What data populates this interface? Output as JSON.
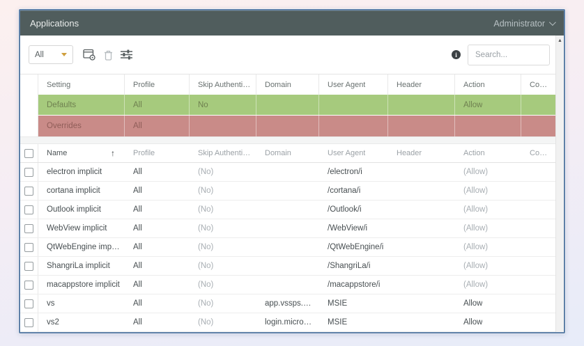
{
  "titlebar": {
    "title": "Applications",
    "user": "Administrator"
  },
  "toolbar": {
    "filter_value": "All",
    "search_placeholder": "Search...",
    "icons": [
      "add-application-icon",
      "delete-icon",
      "filter-settings-icon",
      "info-icon"
    ]
  },
  "defaults_table": {
    "columns": [
      "Setting",
      "Profile",
      "Skip Authentication",
      "Domain",
      "User Agent",
      "Header",
      "Action",
      "Comment"
    ],
    "rows": [
      {
        "variant": "defaults",
        "cells": [
          "Defaults",
          "All",
          "No",
          "",
          "",
          "",
          "Allow",
          ""
        ]
      },
      {
        "variant": "overrides",
        "cells": [
          "Overrides",
          "All",
          "",
          "",
          "",
          "",
          "",
          ""
        ]
      }
    ]
  },
  "apps_table": {
    "columns": [
      "Name",
      "Profile",
      "Skip Authentication",
      "Domain",
      "User Agent",
      "Header",
      "Action",
      "Comment"
    ],
    "sorted_column": "Name",
    "sort_direction": "ascending",
    "rows": [
      {
        "cells": [
          "electron implicit",
          "All",
          "(No)",
          "",
          "/electron/i",
          "",
          "(Allow)",
          ""
        ]
      },
      {
        "cells": [
          "cortana implicit",
          "All",
          "(No)",
          "",
          "/cortana/i",
          "",
          "(Allow)",
          ""
        ]
      },
      {
        "cells": [
          "Outlook implicit",
          "All",
          "(No)",
          "",
          "/Outlook/i",
          "",
          "(Allow)",
          ""
        ]
      },
      {
        "cells": [
          "WebView implicit",
          "All",
          "(No)",
          "",
          "/WebView/i",
          "",
          "(Allow)",
          ""
        ]
      },
      {
        "cells": [
          "QtWebEngine implicit",
          "All",
          "(No)",
          "",
          "/QtWebEngine/i",
          "",
          "(Allow)",
          ""
        ]
      },
      {
        "cells": [
          "ShangriLa implicit",
          "All",
          "(No)",
          "",
          "/ShangriLa/i",
          "",
          "(Allow)",
          ""
        ]
      },
      {
        "cells": [
          "macappstore implicit",
          "All",
          "(No)",
          "",
          "/macappstore/i",
          "",
          "(Allow)",
          ""
        ]
      },
      {
        "cells": [
          "vs",
          "All",
          "(No)",
          "app.vssps.visualst...",
          "MSIE",
          "",
          "Allow",
          ""
        ]
      },
      {
        "cells": [
          "vs2",
          "All",
          "(No)",
          "login.microsoftonl...",
          "MSIE",
          "",
          "Allow",
          ""
        ]
      }
    ]
  },
  "colors": {
    "titlebar_bg": "#505d5d",
    "defaults_row_bg": "#a6ca7d",
    "overrides_row_bg": "#c98b88",
    "panel_border": "#5e80a8",
    "dropdown_caret": "#cf9f3e"
  }
}
